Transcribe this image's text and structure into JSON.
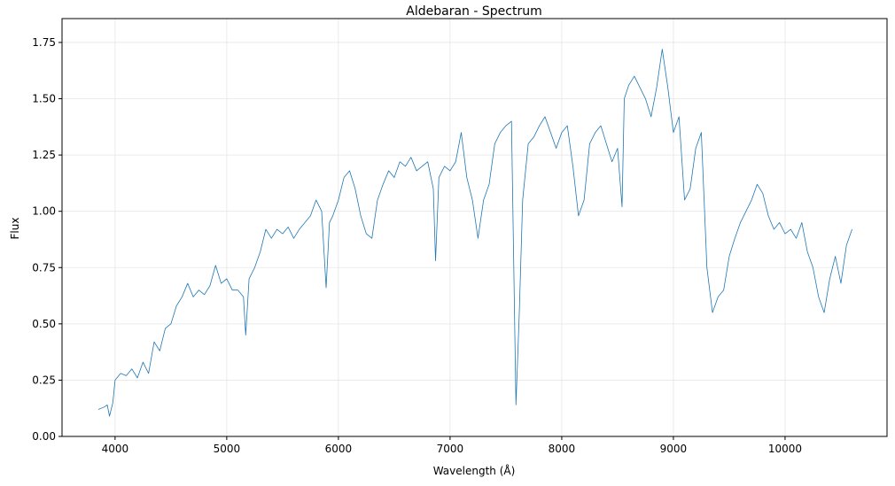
{
  "chart_data": {
    "type": "line",
    "title": "Aldebaran - Spectrum",
    "x_label": "Wavelength (Å)",
    "y_label": "Flux",
    "x": [
      3850,
      3900,
      3930,
      3950,
      3980,
      4000,
      4050,
      4100,
      4150,
      4200,
      4250,
      4300,
      4350,
      4400,
      4450,
      4500,
      4550,
      4600,
      4650,
      4700,
      4750,
      4800,
      4850,
      4900,
      4950,
      5000,
      5050,
      5100,
      5150,
      5170,
      5200,
      5250,
      5300,
      5350,
      5400,
      5450,
      5500,
      5550,
      5600,
      5650,
      5700,
      5750,
      5800,
      5850,
      5890,
      5920,
      5950,
      6000,
      6050,
      6100,
      6150,
      6200,
      6250,
      6300,
      6350,
      6400,
      6450,
      6500,
      6550,
      6600,
      6650,
      6700,
      6750,
      6800,
      6850,
      6870,
      6900,
      6950,
      7000,
      7050,
      7100,
      7150,
      7200,
      7250,
      7300,
      7350,
      7400,
      7450,
      7500,
      7550,
      7590,
      7620,
      7650,
      7700,
      7750,
      7800,
      7850,
      7900,
      7950,
      8000,
      8050,
      8100,
      8150,
      8200,
      8250,
      8300,
      8350,
      8400,
      8450,
      8500,
      8540,
      8560,
      8600,
      8650,
      8700,
      8750,
      8800,
      8850,
      8900,
      8950,
      9000,
      9050,
      9100,
      9150,
      9200,
      9250,
      9300,
      9350,
      9400,
      9450,
      9500,
      9550,
      9600,
      9650,
      9700,
      9750,
      9800,
      9850,
      9900,
      9950,
      10000,
      10050,
      10100,
      10150,
      10200,
      10250,
      10300,
      10350,
      10400,
      10450,
      10500,
      10550,
      10600
    ],
    "series": [
      {
        "name": "Flux",
        "color": "#1f77b4",
        "values": [
          0.12,
          0.13,
          0.14,
          0.09,
          0.15,
          0.25,
          0.28,
          0.27,
          0.3,
          0.26,
          0.33,
          0.28,
          0.42,
          0.38,
          0.48,
          0.5,
          0.58,
          0.62,
          0.68,
          0.62,
          0.65,
          0.63,
          0.67,
          0.76,
          0.68,
          0.7,
          0.65,
          0.65,
          0.62,
          0.45,
          0.7,
          0.75,
          0.82,
          0.92,
          0.88,
          0.92,
          0.9,
          0.93,
          0.88,
          0.92,
          0.95,
          0.98,
          1.05,
          1.0,
          0.66,
          0.95,
          0.98,
          1.05,
          1.15,
          1.18,
          1.1,
          0.98,
          0.9,
          0.88,
          1.05,
          1.12,
          1.18,
          1.15,
          1.22,
          1.2,
          1.24,
          1.18,
          1.2,
          1.22,
          1.1,
          0.78,
          1.15,
          1.2,
          1.18,
          1.22,
          1.35,
          1.15,
          1.05,
          0.88,
          1.05,
          1.12,
          1.3,
          1.35,
          1.38,
          1.4,
          0.14,
          0.55,
          1.05,
          1.3,
          1.33,
          1.38,
          1.42,
          1.35,
          1.28,
          1.35,
          1.38,
          1.2,
          0.98,
          1.05,
          1.3,
          1.35,
          1.38,
          1.3,
          1.22,
          1.28,
          1.02,
          1.5,
          1.56,
          1.6,
          1.55,
          1.5,
          1.42,
          1.55,
          1.72,
          1.55,
          1.35,
          1.42,
          1.05,
          1.1,
          1.28,
          1.35,
          0.75,
          0.55,
          0.62,
          0.65,
          0.8,
          0.88,
          0.95,
          1.0,
          1.05,
          1.12,
          1.08,
          0.98,
          0.92,
          0.95,
          0.9,
          0.92,
          0.88,
          0.95,
          0.82,
          0.75,
          0.62,
          0.55,
          0.7,
          0.8,
          0.68,
          0.85,
          0.92
        ]
      }
    ],
    "xlim": [
      3525,
      10913
    ],
    "xticks": [
      4000,
      5000,
      6000,
      7000,
      8000,
      9000,
      10000
    ],
    "ylim": [
      0,
      1.856
    ],
    "yticks": [
      {
        "value": 0,
        "label": "0.00"
      },
      {
        "value": 0.25,
        "label": "0.25"
      },
      {
        "value": 0.5,
        "label": "0.50"
      },
      {
        "value": 0.75,
        "label": "0.75"
      },
      {
        "value": 1,
        "label": "1.00"
      },
      {
        "value": 1.25,
        "label": "1.25"
      },
      {
        "value": 1.5,
        "label": "1.50"
      },
      {
        "value": 1.75,
        "label": "1.75"
      }
    ],
    "grid": true
  }
}
